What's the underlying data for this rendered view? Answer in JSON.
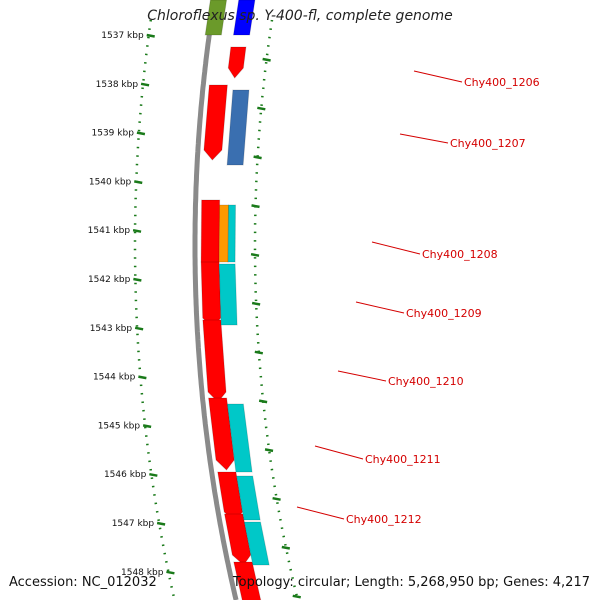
{
  "title": "Chloroflexus sp. Y-400-fl, complete genome",
  "footer": {
    "accession": "Accession: NC_012032",
    "summary": "Topology: circular; Length: 5,268,950 bp; Genes: 4,217"
  },
  "colors": {
    "backbone": "#8a8a8a",
    "tick": "#1a7a1a",
    "forward_strand": "#ff0000",
    "reverse_strand_cyan": "#00c8c8",
    "reverse_strand_orange": "#ff9900",
    "reverse_strand_blue": "#3a6fb0",
    "label": "#d40000"
  },
  "scale": {
    "unit": "kbp",
    "ticks": [
      "1537 kbp",
      "1538 kbp",
      "1539 kbp",
      "1540 kbp",
      "1541 kbp",
      "1542 kbp",
      "1543 kbp",
      "1544 kbp",
      "1545 kbp",
      "1546 kbp",
      "1547 kbp",
      "1548 kbp"
    ]
  },
  "genes": [
    {
      "name": "Chy400_1206"
    },
    {
      "name": "Chy400_1207"
    },
    {
      "name": "Chy400_1208"
    },
    {
      "name": "Chy400_1209"
    },
    {
      "name": "Chy400_1210"
    },
    {
      "name": "Chy400_1211"
    },
    {
      "name": "Chy400_1212"
    }
  ]
}
